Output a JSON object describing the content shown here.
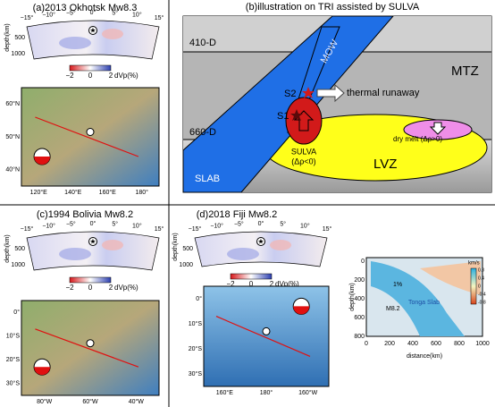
{
  "sections": [
    {
      "title": "(a)2013 Okhotsk Mw8.3",
      "angles": [
        "−15°",
        "−10°",
        "−5°",
        "0°",
        "5°",
        "10°",
        "15°"
      ],
      "depth_label": "depth(km)",
      "depths": [
        "500",
        "1000"
      ],
      "colorbar": {
        "ticks": [
          "−2",
          "0",
          "2"
        ],
        "label": "dVp(%)"
      },
      "map": {
        "lats": [
          "60°N",
          "50°N",
          "40°N"
        ],
        "lons": [
          "120°E",
          "140°E",
          "160°E",
          "180°"
        ]
      }
    },
    {
      "title": "(c)1994 Bolivia Mw8.2",
      "angles": [
        "−15°",
        "−10°",
        "−5°",
        "0°",
        "5°",
        "10°",
        "15°"
      ],
      "depth_label": "depth(km)",
      "depths": [
        "500",
        "1000"
      ],
      "colorbar": {
        "ticks": [
          "−2",
          "0",
          "2"
        ],
        "label": "dVp(%)"
      },
      "map": {
        "lats": [
          "0°",
          "10°S",
          "20°S",
          "30°S"
        ],
        "lons": [
          "80°W",
          "60°W",
          "40°W"
        ]
      }
    },
    {
      "title": "(d)2018 Fiji Mw8.2",
      "angles": [
        "−15°",
        "−10°",
        "−5°",
        "0°",
        "5°",
        "10°",
        "15°"
      ],
      "depth_label": "depth(km)",
      "depths": [
        "500",
        "1000"
      ],
      "colorbar": {
        "ticks": [
          "−2",
          "0",
          "2"
        ],
        "label": "dVp(%)"
      },
      "map": {
        "lats": [
          "0°",
          "10°S",
          "20°S",
          "30°S"
        ],
        "lons": [
          "160°E",
          "180°",
          "160°W"
        ]
      }
    }
  ],
  "illustration": {
    "title": "(b)illustration on TRI assisted by SULVA",
    "d410": "410-D",
    "d660": "660-D",
    "mtz": "MTZ",
    "mow": "MOW",
    "s2": "S2",
    "s1": "S1",
    "runaway": "thermal runaway",
    "sulva": "SULVA",
    "sulva_rho": "(Δρ<0)",
    "dry_melt": "dry melt (Δρ>0)",
    "lvz": "LVZ",
    "slab": "SLAB"
  },
  "inset": {
    "y_label": "depth(km)",
    "y_ticks": [
      "0",
      "200",
      "400",
      "600",
      "800"
    ],
    "x_label": "distance(km)",
    "x_ticks": [
      "0",
      "200",
      "400",
      "600",
      "800",
      "1000"
    ],
    "unit": "km/s",
    "cbar_ticks": [
      "0.8",
      "0.4",
      "0",
      "-0.4",
      "-0.8"
    ],
    "slab": "Tonga Slab",
    "event": "M8.2",
    "contour": "1%"
  }
}
